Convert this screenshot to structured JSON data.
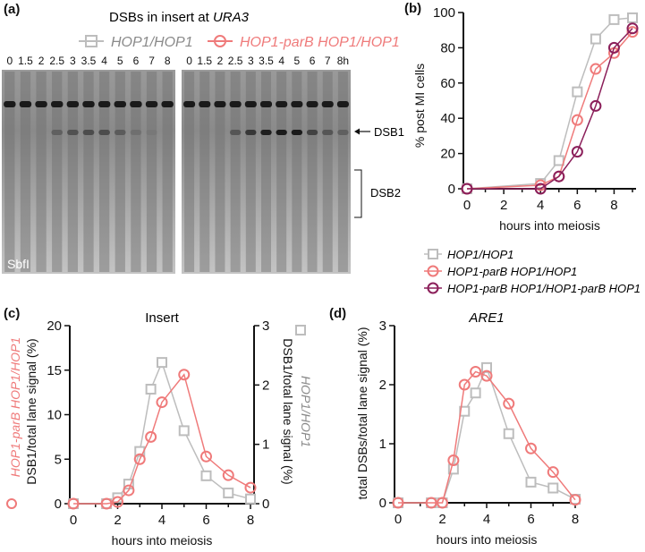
{
  "colors": {
    "grey": "#bdbdbd",
    "pink": "#ef7a7a",
    "purple": "#8b1f5a",
    "axis": "#111111"
  },
  "panel_a": {
    "label": "(a)",
    "title_prefix": "DSBs in insert at ",
    "title_gene": "URA3",
    "legend": [
      {
        "label": "HOP1/HOP1",
        "marker": "square"
      },
      {
        "label": "HOP1-parB HOP1/HOP1",
        "marker": "circle"
      }
    ],
    "lanes_left": [
      "0",
      "1.5",
      "2",
      "2.5",
      "3",
      "3.5",
      "4",
      "5",
      "6",
      "7",
      "8"
    ],
    "lanes_right": [
      "0",
      "1.5",
      "2",
      "2.5",
      "3",
      "3.5",
      "4",
      "5",
      "6",
      "7",
      "8h"
    ],
    "dsb1_label": "DSB1",
    "dsb2_label": "DSB2",
    "enzyme_label": "SbfI"
  },
  "chart_data": [
    {
      "id": "b",
      "panel_label": "(b)",
      "type": "line",
      "title": "",
      "xlabel": "hours into meiosis",
      "ylabel": "% post MI cells",
      "xlim": [
        0,
        9
      ],
      "ylim": [
        0,
        100
      ],
      "xticks": [
        "0",
        "2",
        "4",
        "6",
        "8"
      ],
      "yticks": [
        "0",
        "20",
        "40",
        "60",
        "80",
        "100"
      ],
      "series": [
        {
          "name": "HOP1/HOP1",
          "color": "grey",
          "marker": "square",
          "x": [
            0,
            4,
            5,
            6,
            7,
            8,
            9
          ],
          "y": [
            0,
            3,
            16,
            55,
            85,
            96,
            97
          ]
        },
        {
          "name": "HOP1-parB HOP1/HOP1",
          "color": "pink",
          "marker": "circle",
          "x": [
            0,
            4,
            5,
            6,
            7,
            8,
            9
          ],
          "y": [
            0,
            2,
            7,
            39,
            68,
            77,
            89
          ]
        },
        {
          "name": "HOP1-parB HOP1/HOP1-parB HOP1",
          "color": "purple",
          "marker": "circle",
          "x": [
            0,
            4,
            5,
            6,
            7,
            8,
            9
          ],
          "y": [
            0,
            0,
            7,
            21,
            47,
            80,
            91
          ]
        }
      ],
      "legend": "below"
    },
    {
      "id": "c",
      "panel_label": "(c)",
      "type": "line",
      "title": "Insert",
      "xlabel": "hours into meiosis",
      "ylabel_left_series": "HOP1-parB HOP1/HOP1",
      "ylabel_left": "DSB1/total lane signal (%)",
      "ylabel_right_series": "HOP1/HOP1",
      "ylabel_right": "DSB1/total lane signal (%)",
      "xlim": [
        0,
        8
      ],
      "ylim": [
        0,
        20
      ],
      "ylim_right": [
        0,
        3
      ],
      "xticks": [
        "0",
        "2",
        "4",
        "6",
        "8"
      ],
      "yticks": [
        "0",
        "5",
        "10",
        "15",
        "20"
      ],
      "yticks_right": [
        "0",
        "1",
        "2",
        "3"
      ],
      "series": [
        {
          "name": "HOP1/HOP1",
          "axis": "right",
          "color": "grey",
          "marker": "square",
          "x": [
            0,
            1.5,
            2,
            2.5,
            3,
            3.5,
            4,
            5,
            6,
            7,
            8
          ],
          "y": [
            0,
            0,
            0.1,
            0.33,
            0.88,
            1.93,
            2.38,
            1.23,
            0.47,
            0.18,
            0.08
          ]
        },
        {
          "name": "HOP1-parB HOP1/HOP1",
          "axis": "left",
          "color": "pink",
          "marker": "circle",
          "x": [
            0,
            1.5,
            2,
            2.5,
            3,
            3.5,
            4,
            5,
            6,
            7,
            8
          ],
          "y": [
            0,
            0,
            0.2,
            1.5,
            5,
            7.5,
            11.4,
            14.5,
            5.3,
            3.2,
            1.8
          ]
        }
      ]
    },
    {
      "id": "d",
      "panel_label": "(d)",
      "type": "line",
      "title": "ARE1",
      "xlabel": "hours into meiosis",
      "ylabel": "total DSBs/total lane signal (%)",
      "xlim": [
        0,
        8
      ],
      "ylim": [
        0,
        3
      ],
      "xticks": [
        "0",
        "2",
        "4",
        "6",
        "8"
      ],
      "yticks": [
        "0",
        "1",
        "2",
        "3"
      ],
      "series": [
        {
          "name": "HOP1/HOP1",
          "color": "grey",
          "marker": "square",
          "x": [
            0,
            1.5,
            2,
            2.5,
            3,
            3.5,
            4,
            5,
            6,
            7,
            8
          ],
          "y": [
            0,
            0,
            0,
            0.57,
            1.55,
            1.86,
            2.29,
            1.17,
            0.35,
            0.25,
            0.06
          ]
        },
        {
          "name": "HOP1-parB HOP1/HOP1",
          "color": "pink",
          "marker": "circle",
          "x": [
            0,
            1.5,
            2,
            2.5,
            3,
            3.5,
            4,
            5,
            6,
            7,
            8
          ],
          "y": [
            0,
            0,
            0,
            0.72,
            2.0,
            2.22,
            2.15,
            1.68,
            0.92,
            0.52,
            0.05
          ]
        }
      ]
    }
  ]
}
